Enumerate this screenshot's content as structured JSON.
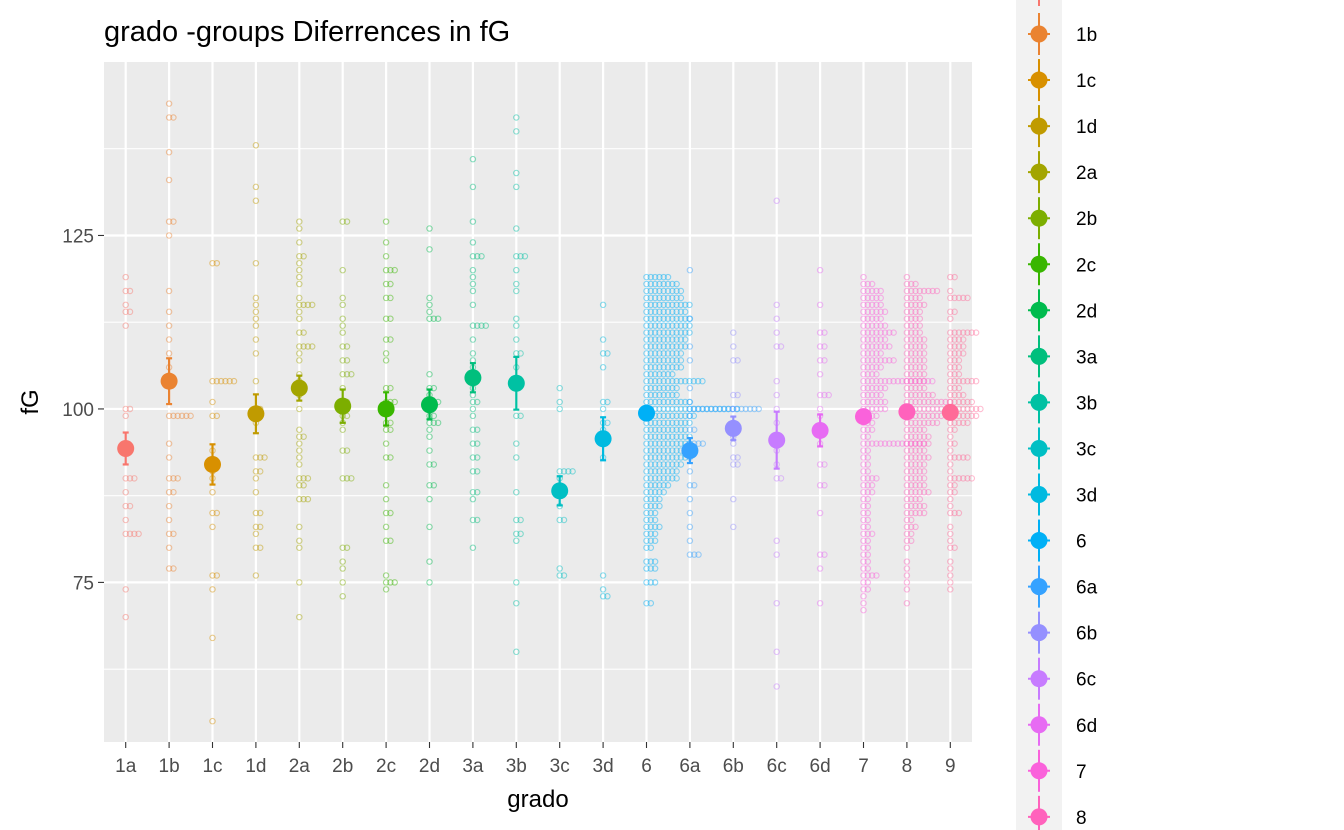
{
  "chart_data": {
    "type": "scatter",
    "title": "grado -groups Diferrences in  fG",
    "xlabel": "grado",
    "ylabel": "fG",
    "ylim": [
      52,
      150
    ],
    "y_ticks": [
      75,
      100,
      125
    ],
    "y_minor_ticks": [
      62.5,
      87.5,
      112.5,
      137.5
    ],
    "grid": true,
    "legend_position": "right",
    "legend_visible": [
      "1b",
      "1c",
      "1d",
      "2a",
      "2b",
      "2c",
      "2d",
      "3a",
      "3b",
      "3c",
      "3d",
      "6",
      "6a",
      "6b",
      "6c",
      "6d",
      "7",
      "8"
    ],
    "categories": [
      "1a",
      "1b",
      "1c",
      "1d",
      "2a",
      "2b",
      "2c",
      "2d",
      "3a",
      "3b",
      "3c",
      "3d",
      "6",
      "6a",
      "6b",
      "6c",
      "6d",
      "7",
      "8",
      "9"
    ],
    "colors": [
      "#F8766D",
      "#EA8331",
      "#D89000",
      "#C09B00",
      "#A3A500",
      "#7CAE00",
      "#39B600",
      "#00BB4E",
      "#00BF7D",
      "#00C1A3",
      "#00BFC4",
      "#00BAE0",
      "#00B0F6",
      "#35A2FF",
      "#9590FF",
      "#C77CFF",
      "#E76BF3",
      "#FA62DB",
      "#FF62BC",
      "#FF6A98"
    ],
    "means": [
      94.3,
      104,
      92,
      99.3,
      103,
      100.4,
      100,
      100.6,
      104.5,
      103.7,
      88.2,
      95.7,
      99.4,
      94,
      97.2,
      95.5,
      96.9,
      98.9,
      99.6,
      99.5
    ],
    "ci_low": [
      92,
      100.7,
      89.1,
      96.5,
      101.2,
      98,
      97.6,
      98.5,
      102.4,
      99.9,
      86.1,
      92.6,
      98.8,
      92.2,
      95.5,
      91.4,
      94.6,
      98.2,
      99.1,
      98.9
    ],
    "ci_high": [
      96.6,
      107.3,
      94.9,
      102.1,
      104.8,
      102.8,
      102.4,
      102.8,
      106.6,
      107.5,
      90.3,
      98.8,
      100,
      95.8,
      98.9,
      99.6,
      99.2,
      99.6,
      100.1,
      100.1
    ],
    "points": [
      [
        70,
        74,
        82,
        82,
        82,
        82,
        84,
        86,
        86,
        88,
        90,
        90,
        90,
        95,
        99,
        100,
        100,
        112,
        114,
        114,
        115,
        117,
        117,
        119
      ],
      [
        77,
        77,
        80,
        82,
        82,
        84,
        86,
        88,
        88,
        90,
        90,
        90,
        93,
        95,
        99,
        99,
        99,
        99,
        99,
        99,
        104,
        106,
        108,
        110,
        112,
        114,
        117,
        125,
        127,
        127,
        133,
        137,
        142,
        142,
        144
      ],
      [
        55,
        67,
        74,
        76,
        76,
        83,
        85,
        85,
        88,
        90,
        91,
        94,
        99,
        99,
        101,
        104,
        104,
        104,
        104,
        104,
        104,
        121,
        121
      ],
      [
        76,
        80,
        80,
        82,
        83,
        83,
        85,
        85,
        88,
        90,
        91,
        91,
        93,
        93,
        93,
        98,
        100,
        100,
        104,
        108,
        110,
        112,
        113,
        114,
        115,
        116,
        121,
        130,
        132,
        138
      ],
      [
        70,
        75,
        80,
        81,
        83,
        87,
        87,
        87,
        89,
        89,
        90,
        90,
        90,
        92,
        93,
        94,
        95,
        96,
        96,
        97,
        100,
        102,
        103,
        103,
        104,
        105,
        107,
        108,
        109,
        109,
        109,
        109,
        111,
        111,
        113,
        114,
        115,
        115,
        115,
        115,
        116,
        118,
        119,
        120,
        121,
        122,
        122,
        124,
        126,
        127
      ],
      [
        73,
        75,
        77,
        78,
        80,
        80,
        90,
        90,
        90,
        94,
        94,
        97,
        98,
        99,
        99,
        100,
        101,
        101,
        103,
        105,
        105,
        105,
        107,
        107,
        109,
        109,
        111,
        112,
        113,
        115,
        116,
        120,
        127,
        127
      ],
      [
        74,
        75,
        75,
        75,
        76,
        81,
        81,
        83,
        85,
        85,
        87,
        89,
        93,
        93,
        95,
        97,
        97,
        98,
        98,
        101,
        101,
        101,
        103,
        103,
        107,
        108,
        110,
        110,
        113,
        113,
        116,
        116,
        118,
        118,
        120,
        120,
        120,
        122,
        124,
        127
      ],
      [
        75,
        78,
        83,
        87,
        89,
        89,
        92,
        92,
        94,
        96,
        97,
        98,
        98,
        98,
        99,
        99,
        100,
        101,
        101,
        101,
        102,
        103,
        103,
        105,
        113,
        113,
        113,
        114,
        115,
        116,
        123,
        126
      ],
      [
        80,
        84,
        84,
        87,
        88,
        88,
        91,
        91,
        93,
        93,
        95,
        95,
        97,
        97,
        99,
        100,
        101,
        101,
        102,
        103,
        104,
        105,
        106,
        107,
        108,
        110,
        112,
        112,
        112,
        112,
        115,
        117,
        118,
        119,
        120,
        122,
        122,
        122,
        124,
        127,
        132,
        136
      ],
      [
        65,
        72,
        75,
        81,
        82,
        82,
        84,
        84,
        88,
        93,
        95,
        99,
        99,
        103,
        106,
        108,
        108,
        110,
        112,
        113,
        117,
        118,
        120,
        122,
        122,
        122,
        126,
        132,
        134,
        140,
        142
      ],
      [
        76,
        76,
        77,
        84,
        84,
        86,
        89,
        90,
        91,
        91,
        91,
        91,
        100,
        101,
        103
      ],
      [
        73,
        73,
        74,
        76,
        93,
        95,
        97,
        98,
        98,
        100,
        101,
        101,
        106,
        108,
        108,
        110,
        115
      ],
      [
        72,
        72,
        75,
        75,
        75,
        77,
        77,
        77,
        78,
        78,
        78,
        80,
        80,
        81,
        81,
        81,
        82,
        82,
        82,
        83,
        83,
        83,
        83,
        84,
        84,
        84,
        85,
        85,
        85,
        86,
        86,
        86,
        86,
        87,
        87,
        87,
        87,
        88,
        88,
        88,
        88,
        88,
        89,
        89,
        89,
        89,
        89,
        89,
        90,
        90,
        90,
        90,
        90,
        90,
        90,
        90,
        91,
        91,
        91,
        91,
        91,
        91,
        91,
        91,
        92,
        92,
        92,
        92,
        92,
        92,
        92,
        92,
        92,
        93,
        93,
        93,
        93,
        93,
        93,
        93,
        93,
        93,
        93,
        94,
        94,
        94,
        94,
        94,
        94,
        94,
        94,
        94,
        94,
        95,
        95,
        95,
        95,
        95,
        95,
        95,
        95,
        95,
        95,
        95,
        96,
        96,
        96,
        96,
        96,
        96,
        96,
        96,
        96,
        96,
        96,
        97,
        97,
        97,
        97,
        97,
        97,
        97,
        97,
        97,
        97,
        98,
        98,
        98,
        98,
        98,
        98,
        98,
        98,
        98,
        98,
        98,
        99,
        99,
        99,
        99,
        99,
        99,
        99,
        99,
        99,
        99,
        99,
        99,
        100,
        100,
        100,
        100,
        100,
        100,
        100,
        100,
        100,
        100,
        100,
        100,
        100,
        100,
        100,
        100,
        100,
        100,
        100,
        100,
        100,
        100,
        101,
        101,
        101,
        101,
        101,
        101,
        101,
        101,
        101,
        101,
        101,
        102,
        102,
        102,
        102,
        102,
        102,
        102,
        102,
        103,
        103,
        103,
        103,
        103,
        103,
        103,
        103,
        104,
        104,
        104,
        104,
        104,
        104,
        104,
        104,
        104,
        104,
        104,
        104,
        104,
        104,
        105,
        105,
        105,
        105,
        105,
        105,
        105,
        106,
        106,
        106,
        106,
        106,
        106,
        106,
        106,
        106,
        107,
        107,
        107,
        107,
        107,
        107,
        107,
        107,
        107,
        108,
        108,
        108,
        108,
        108,
        108,
        108,
        108,
        108,
        109,
        109,
        109,
        109,
        109,
        109,
        109,
        109,
        109,
        109,
        110,
        110,
        110,
        110,
        110,
        110,
        110,
        110,
        110,
        110,
        111,
        111,
        111,
        111,
        111,
        111,
        111,
        111,
        111,
        111,
        111,
        112,
        112,
        112,
        112,
        112,
        112,
        112,
        112,
        112,
        112,
        112,
        113,
        113,
        113,
        113,
        113,
        113,
        113,
        113,
        113,
        113,
        113,
        114,
        114,
        114,
        114,
        114,
        114,
        114,
        114,
        114,
        114,
        115,
        115,
        115,
        115,
        115,
        115,
        115,
        115,
        115,
        115,
        115,
        116,
        116,
        116,
        116,
        116,
        116,
        116,
        116,
        116,
        117,
        117,
        117,
        117,
        117,
        117,
        117,
        117,
        117,
        118,
        118,
        118,
        118,
        118,
        118,
        118,
        118,
        119,
        119,
        119,
        119,
        119,
        119
      ],
      [
        79,
        79,
        79,
        81,
        83,
        85,
        87,
        89,
        89,
        91,
        93,
        95,
        95,
        95,
        95,
        97,
        97,
        99,
        100,
        100,
        100,
        100,
        100,
        100,
        100,
        100,
        100,
        100,
        100,
        100,
        100,
        100,
        100,
        100,
        100,
        101,
        103,
        107,
        109,
        113,
        120
      ],
      [
        83,
        87,
        92,
        92,
        93,
        93,
        95,
        96,
        98,
        100,
        102,
        102,
        107,
        107,
        109,
        111
      ],
      [
        60,
        65,
        72,
        79,
        81,
        90,
        90,
        92,
        94,
        96,
        98,
        100,
        102,
        104,
        109,
        109,
        111,
        113,
        115,
        130
      ],
      [
        72,
        77,
        79,
        79,
        85,
        89,
        89,
        92,
        92,
        95,
        97,
        99,
        100,
        102,
        102,
        102,
        105,
        107,
        107,
        109,
        109,
        111,
        111,
        115,
        120
      ],
      [
        71,
        72,
        73,
        74,
        74,
        75,
        75,
        76,
        76,
        76,
        76,
        77,
        77,
        78,
        78,
        79,
        79,
        80,
        80,
        81,
        81,
        82,
        82,
        82,
        83,
        83,
        84,
        84,
        85,
        85,
        86,
        86,
        87,
        87,
        88,
        88,
        88,
        89,
        89,
        89,
        90,
        90,
        90,
        90,
        91,
        91,
        92,
        92,
        93,
        93,
        94,
        94,
        95,
        95,
        95,
        95,
        95,
        95,
        95,
        95,
        95,
        95,
        95,
        95,
        95,
        95,
        95,
        96,
        96,
        97,
        97,
        97,
        98,
        98,
        98,
        99,
        99,
        99,
        99,
        100,
        100,
        100,
        100,
        100,
        100,
        101,
        101,
        101,
        101,
        101,
        101,
        102,
        102,
        102,
        102,
        102,
        103,
        103,
        103,
        103,
        103,
        103,
        104,
        104,
        104,
        104,
        104,
        104,
        104,
        104,
        104,
        104,
        104,
        104,
        104,
        104,
        104,
        104,
        104,
        105,
        105,
        105,
        105,
        106,
        106,
        106,
        106,
        106,
        107,
        107,
        107,
        107,
        107,
        107,
        107,
        107,
        108,
        108,
        108,
        108,
        108,
        109,
        109,
        109,
        109,
        109,
        109,
        109,
        110,
        110,
        110,
        110,
        110,
        110,
        111,
        111,
        111,
        111,
        111,
        111,
        111,
        111,
        112,
        112,
        112,
        112,
        112,
        112,
        113,
        113,
        113,
        113,
        113,
        114,
        114,
        114,
        114,
        114,
        114,
        115,
        115,
        115,
        115,
        115,
        116,
        116,
        116,
        116,
        116,
        117,
        117,
        117,
        117,
        117,
        118,
        118,
        118,
        119
      ],
      [
        72,
        74,
        75,
        76,
        77,
        78,
        80,
        81,
        81,
        82,
        82,
        83,
        83,
        83,
        84,
        84,
        85,
        85,
        85,
        85,
        85,
        86,
        86,
        86,
        86,
        86,
        87,
        87,
        87,
        87,
        88,
        88,
        88,
        88,
        88,
        88,
        89,
        89,
        89,
        89,
        89,
        90,
        90,
        90,
        90,
        90,
        91,
        91,
        91,
        91,
        91,
        92,
        92,
        92,
        92,
        92,
        93,
        93,
        93,
        93,
        93,
        93,
        94,
        94,
        94,
        94,
        94,
        95,
        95,
        95,
        95,
        95,
        95,
        96,
        96,
        96,
        96,
        96,
        96,
        97,
        97,
        97,
        97,
        97,
        98,
        98,
        98,
        98,
        98,
        98,
        98,
        98,
        99,
        99,
        99,
        99,
        99,
        99,
        99,
        99,
        99,
        100,
        100,
        100,
        100,
        100,
        100,
        100,
        100,
        100,
        101,
        101,
        101,
        101,
        101,
        101,
        101,
        101,
        101,
        101,
        101,
        102,
        102,
        102,
        102,
        102,
        102,
        102,
        103,
        103,
        103,
        103,
        103,
        104,
        104,
        104,
        104,
        104,
        105,
        105,
        105,
        105,
        105,
        106,
        106,
        106,
        106,
        106,
        107,
        107,
        107,
        107,
        107,
        108,
        108,
        108,
        108,
        108,
        109,
        109,
        109,
        109,
        109,
        110,
        110,
        110,
        110,
        110,
        111,
        111,
        111,
        111,
        112,
        112,
        112,
        112,
        113,
        113,
        113,
        113,
        114,
        114,
        114,
        114,
        115,
        115,
        115,
        115,
        115,
        116,
        116,
        116,
        116,
        117,
        117,
        117,
        117,
        117,
        117,
        117,
        117,
        118,
        118,
        118,
        119
      ],
      [
        74,
        75,
        76,
        77,
        78,
        80,
        80,
        81,
        82,
        83,
        85,
        85,
        85,
        86,
        87,
        88,
        88,
        89,
        89,
        90,
        90,
        90,
        90,
        90,
        90,
        91,
        92,
        93,
        93,
        93,
        93,
        93,
        94,
        95,
        95,
        96,
        97,
        97,
        98,
        98,
        98,
        98,
        98,
        99,
        99,
        99,
        99,
        99,
        99,
        99,
        100,
        100,
        100,
        100,
        100,
        100,
        100,
        100,
        101,
        101,
        101,
        101,
        101,
        101,
        102,
        102,
        102,
        102,
        103,
        103,
        103,
        104,
        104,
        104,
        104,
        104,
        104,
        104,
        105,
        105,
        105,
        106,
        106,
        106,
        107,
        107,
        107,
        108,
        108,
        108,
        108,
        109,
        109,
        109,
        109,
        110,
        110,
        110,
        110,
        111,
        111,
        111,
        111,
        111,
        111,
        111,
        113,
        114,
        114,
        116,
        116,
        116,
        116,
        116,
        117,
        119,
        119
      ]
    ]
  }
}
